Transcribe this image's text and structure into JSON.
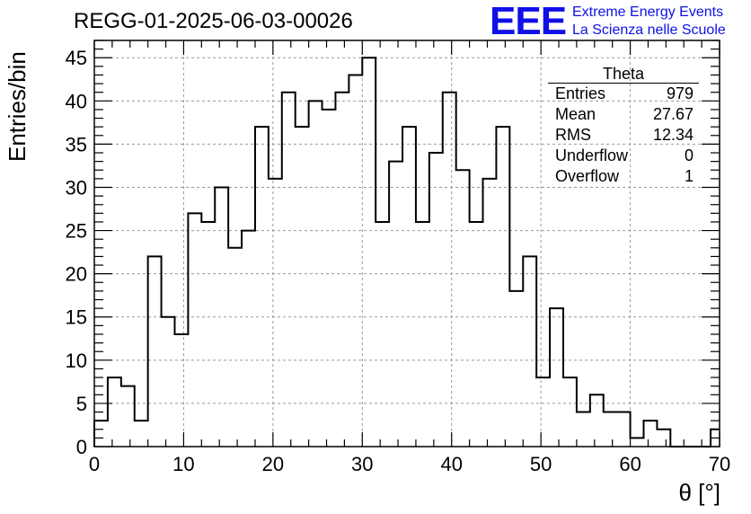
{
  "page": {
    "title": "REGG-01-2025-06-03-00026",
    "logo_text": "EEE",
    "logo_line1": "Extreme Energy Events",
    "logo_line2": "La Scienza nelle Scuole"
  },
  "stats_box": {
    "title": "Theta",
    "rows": [
      {
        "label": "Entries",
        "value": "979"
      },
      {
        "label": "Mean",
        "value": "27.67"
      },
      {
        "label": "RMS",
        "value": "12.34"
      },
      {
        "label": "Underflow",
        "value": "0"
      },
      {
        "label": "Overflow",
        "value": "1"
      }
    ]
  },
  "colors": {
    "line": "#000000",
    "grid": "#999999",
    "logo": "#1010e8"
  },
  "chart_data": {
    "type": "bar",
    "style": "step-histogram",
    "xlabel": "θ [°]",
    "ylabel": "Entries/bin",
    "xlim": [
      0,
      70
    ],
    "ylim": [
      0,
      47
    ],
    "grid": true,
    "x_ticks": [
      0,
      10,
      20,
      30,
      40,
      50,
      60,
      70
    ],
    "y_ticks": [
      0,
      5,
      10,
      15,
      20,
      25,
      30,
      35,
      40,
      45
    ],
    "bin_width": 1.5,
    "bin_start": 0,
    "values": [
      3,
      8,
      7,
      3,
      22,
      15,
      13,
      27,
      26,
      30,
      23,
      25,
      37,
      31,
      41,
      37,
      40,
      39,
      41,
      43,
      45,
      26,
      33,
      37,
      26,
      34,
      41,
      32,
      26,
      31,
      37,
      18,
      22,
      8,
      16,
      8,
      4,
      6,
      4,
      4,
      1,
      3,
      2,
      0,
      0,
      0,
      2
    ]
  }
}
